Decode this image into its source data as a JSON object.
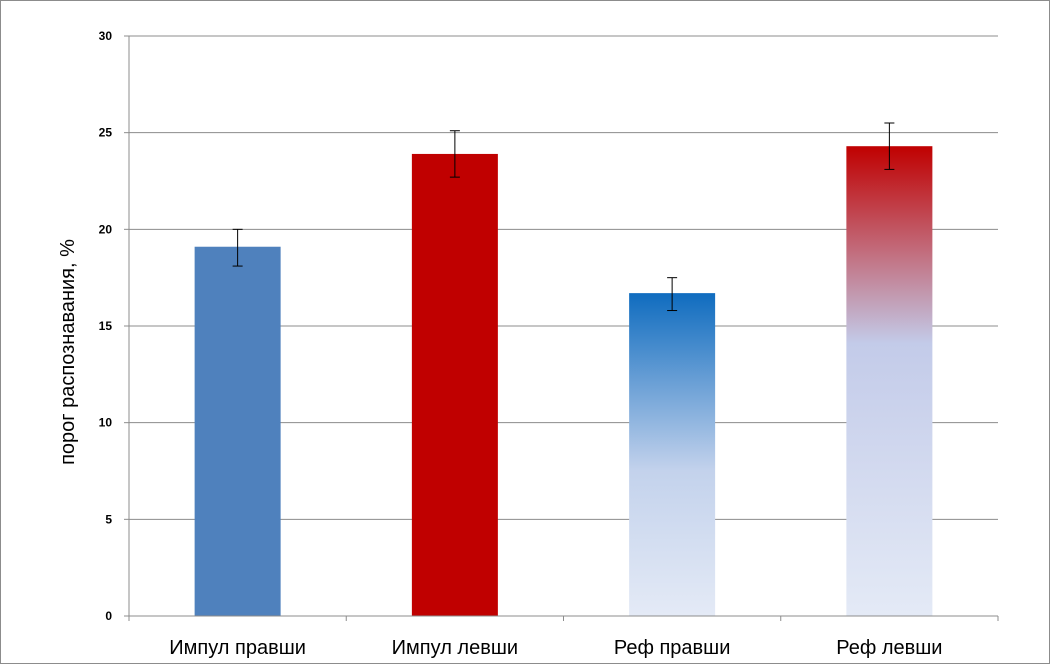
{
  "chart_data": {
    "type": "bar",
    "title": "",
    "xlabel": "",
    "ylabel": "порог распознавания, %",
    "ylim": [
      0,
      30
    ],
    "yticks": [
      0,
      5,
      10,
      15,
      20,
      25,
      30
    ],
    "grid": true,
    "legend": "none",
    "categories": [
      "Импул правши",
      "Импул левши",
      "Реф правши",
      "Реф левши"
    ],
    "values": [
      19.1,
      23.9,
      16.7,
      24.3
    ],
    "error_low": [
      18.1,
      22.7,
      15.8,
      23.1
    ],
    "error_high": [
      20.0,
      25.1,
      17.5,
      25.5
    ],
    "colors": {
      "impulse_right": "#4f81bd",
      "impulse_left": "#c00000",
      "ref_right_top": "#0f6cbf",
      "ref_right_bottom": "#e4eaf6",
      "ref_left_top": "#c00000",
      "ref_left_bottom": "#e4eaf6",
      "gridline": "#8c8c8c",
      "error_bar": "#000000"
    }
  }
}
